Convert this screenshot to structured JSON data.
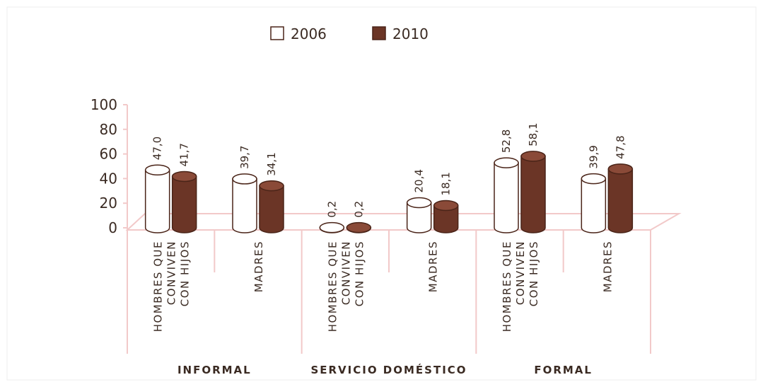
{
  "chart_data": {
    "type": "bar",
    "categories": [
      [
        "HOMBRES QUE",
        "CONVIVEN",
        "CON HIJOS"
      ],
      [
        "MADRES"
      ],
      [
        "HOMBRES QUE",
        "CONVIVEN",
        "CON HIJOS"
      ],
      [
        "MADRES"
      ],
      [
        "HOMBRES QUE",
        "CONVIVEN",
        "CON HIJOS"
      ],
      [
        "MADRES"
      ]
    ],
    "groups": [
      "INFORMAL",
      "SERVICIO DOMÉSTICO",
      "FORMAL"
    ],
    "series": [
      {
        "name": "2006",
        "color": "#ffffff",
        "values": [
          47.0,
          39.7,
          0.2,
          20.4,
          52.8,
          39.9
        ],
        "value_labels": [
          "47,0",
          "39,7",
          "0,2",
          "20,4",
          "52,8",
          "39,9"
        ]
      },
      {
        "name": "2010",
        "color": "#6b3526",
        "values": [
          41.7,
          34.1,
          0.2,
          18.1,
          58.1,
          47.8
        ],
        "value_labels": [
          "41,7",
          "34,1",
          "0,2",
          "18,1",
          "58,1",
          "47,8"
        ]
      }
    ],
    "ylim": [
      0,
      100
    ],
    "yticks": [
      0,
      20,
      40,
      60,
      80,
      100
    ],
    "legend": "top"
  }
}
